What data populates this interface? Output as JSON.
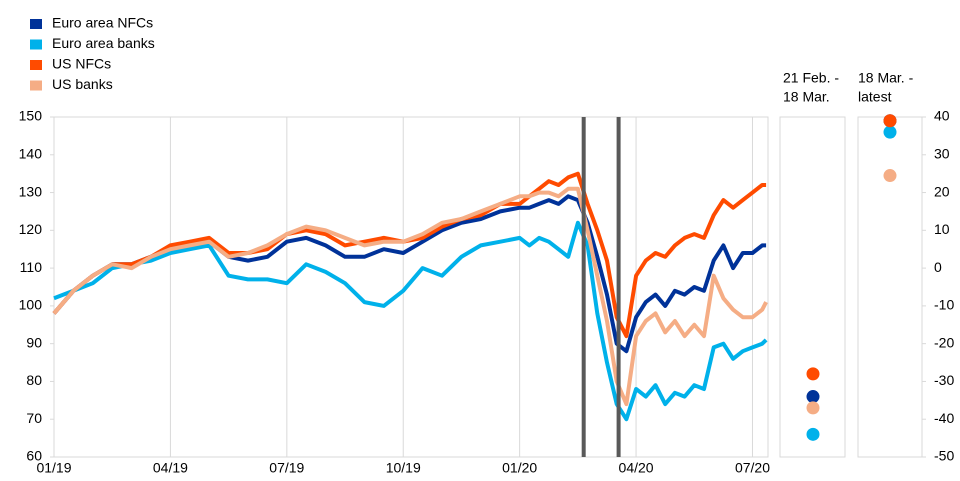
{
  "chart_data": [
    {
      "type": "line",
      "x": [
        0,
        0.5,
        1,
        1.5,
        2,
        2.5,
        3,
        3.5,
        4,
        4.5,
        5,
        5.5,
        6,
        6.5,
        7,
        7.5,
        8,
        8.5,
        9,
        9.5,
        10,
        10.5,
        11,
        11.5,
        12,
        12.25,
        12.5,
        12.75,
        13,
        13.25,
        13.5,
        13.75,
        14,
        14.25,
        14.5,
        14.75,
        15,
        15.25,
        15.5,
        15.75,
        16,
        16.25,
        16.5,
        16.75,
        17,
        17.25,
        17.5,
        17.75,
        18,
        18.25,
        18.35
      ],
      "xlim": [
        0,
        18.4
      ],
      "xticks": [
        {
          "value": 0,
          "label": "01/19"
        },
        {
          "value": 3,
          "label": "04/19"
        },
        {
          "value": 6,
          "label": "07/19"
        },
        {
          "value": 9,
          "label": "10/19"
        },
        {
          "value": 12,
          "label": "01/20"
        },
        {
          "value": 15,
          "label": "04/20"
        },
        {
          "value": 18,
          "label": "07/20"
        }
      ],
      "ylim": [
        60,
        150
      ],
      "yticks": [
        60,
        70,
        80,
        90,
        100,
        110,
        120,
        130,
        140,
        150
      ],
      "grid": true,
      "vlines": [
        13.65,
        14.55
      ],
      "series": [
        {
          "name": "Euro area NFCs",
          "color": "#003299",
          "values": [
            98,
            104,
            108,
            111,
            111,
            113,
            115,
            116,
            117,
            113,
            112,
            113,
            117,
            118,
            116,
            113,
            113,
            115,
            114,
            117,
            120,
            122,
            123,
            125,
            126,
            126,
            127,
            128,
            127,
            129,
            128,
            122,
            113,
            103,
            90,
            88,
            97,
            101,
            103,
            100,
            104,
            103,
            105,
            104,
            112,
            116,
            110,
            114,
            114,
            116,
            116
          ]
        },
        {
          "name": "Euro area banks",
          "color": "#00b1ea",
          "values": [
            102,
            104,
            106,
            110,
            111,
            112,
            114,
            115,
            116,
            108,
            107,
            107,
            106,
            111,
            109,
            106,
            101,
            100,
            104,
            110,
            108,
            113,
            116,
            117,
            118,
            116,
            118,
            117,
            115,
            113,
            122,
            116,
            98,
            85,
            74,
            70,
            78,
            76,
            79,
            74,
            77,
            76,
            79,
            78,
            89,
            90,
            86,
            88,
            89,
            90,
            91
          ]
        },
        {
          "name": "US NFCs",
          "color": "#ff4b00",
          "values": [
            98,
            104,
            108,
            111,
            111,
            113,
            116,
            117,
            118,
            114,
            114,
            115,
            119,
            120,
            119,
            116,
            117,
            118,
            117,
            118,
            121,
            123,
            124,
            127,
            127,
            129,
            131,
            133,
            132,
            134,
            135,
            127,
            120,
            112,
            97,
            92,
            108,
            112,
            114,
            113,
            116,
            118,
            119,
            118,
            124,
            128,
            126,
            128,
            130,
            132,
            132
          ]
        },
        {
          "name": "US banks",
          "color": "#f5ad85",
          "values": [
            98,
            104,
            108,
            111,
            110,
            113,
            115,
            116,
            117,
            113,
            114,
            116,
            119,
            121,
            120,
            118,
            116,
            117,
            117,
            119,
            122,
            123,
            125,
            127,
            129,
            129,
            130,
            130,
            129,
            131,
            131,
            120,
            108,
            96,
            80,
            74,
            92,
            96,
            98,
            93,
            96,
            92,
            95,
            92,
            108,
            102,
            99,
            97,
            97,
            99,
            101
          ]
        }
      ]
    },
    {
      "type": "dot",
      "categories": [
        [
          "21 Feb. -",
          "18 Mar."
        ],
        [
          "18 Mar. -",
          "latest"
        ]
      ],
      "y2lim": [
        -50,
        40
      ],
      "y2ticks": [
        -50,
        -40,
        -30,
        -20,
        -10,
        0,
        10,
        20,
        30,
        40
      ],
      "series": [
        {
          "color": "#003299",
          "values": [
            -34,
            39
          ]
        },
        {
          "color": "#00b1ea",
          "values": [
            -44,
            36
          ]
        },
        {
          "color": "#ff4b00",
          "values": [
            -28,
            39
          ]
        },
        {
          "color": "#f5ad85",
          "values": [
            -37,
            24.5
          ]
        }
      ]
    }
  ]
}
